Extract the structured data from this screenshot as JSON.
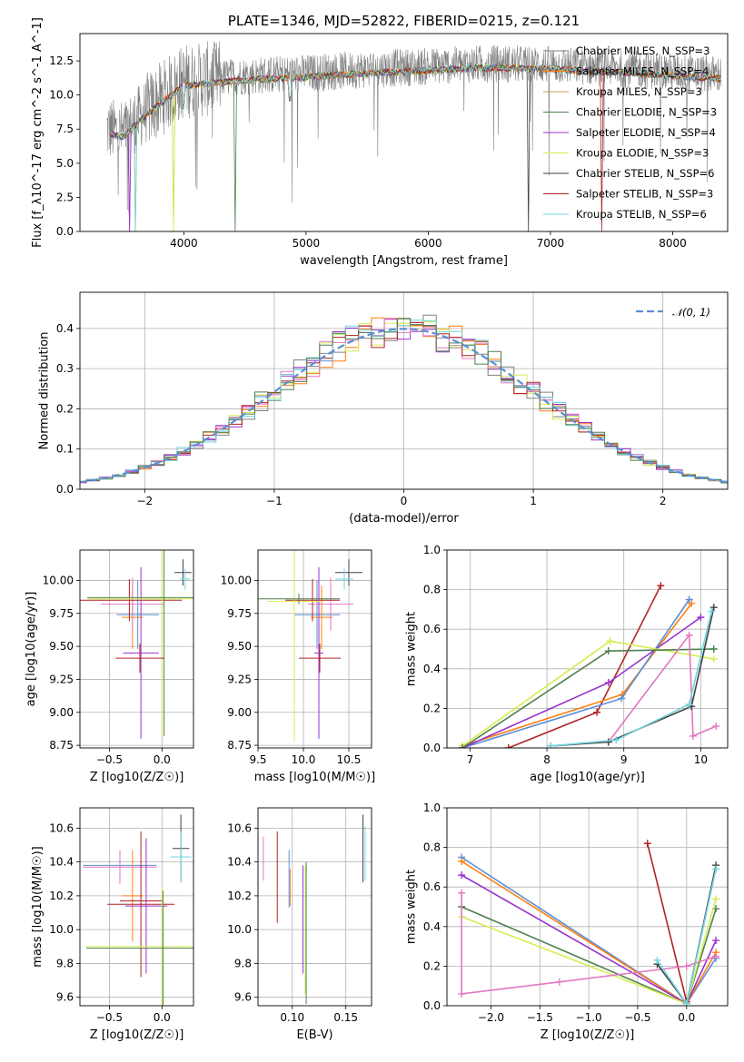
{
  "chart_data": [
    {
      "id": "spectrum",
      "type": "line",
      "title": "PLATE=1346, MJD=52822, FIBERID=0215, z=0.121",
      "xlabel": "wavelength [Angstrom, rest frame]",
      "ylabel": "Flux [f_λ10^-17 erg cm^-2 s^-1 A^-1]",
      "xlim": [
        3150,
        8450
      ],
      "ylim": [
        0,
        14.5
      ],
      "xticks": [
        4000,
        5000,
        6000,
        7000,
        8000
      ],
      "yticks": [
        0.0,
        2.5,
        5.0,
        7.5,
        10.0,
        12.5
      ],
      "grid": false,
      "legend_position": "top-right",
      "observed": {
        "color": "#808080",
        "x": [
          3370,
          3500,
          3650,
          3800,
          4000,
          4500,
          5000,
          5500,
          6000,
          6500,
          7000,
          7500,
          8000,
          8400
        ],
        "y": [
          7.5,
          7.2,
          8.5,
          9.6,
          11.0,
          11.4,
          11.6,
          11.9,
          12.1,
          12.3,
          12.2,
          12.0,
          11.7,
          11.5
        ]
      },
      "series": [
        {
          "name": "Chabrier MILES, N_SSP=3",
          "color": "#808080"
        },
        {
          "name": "Salpeter MILES, N_SSP=4",
          "color": "#ff7f0e"
        },
        {
          "name": "Kroupa MILES, N_SSP=3",
          "color": "#c8a050"
        },
        {
          "name": "Chabrier ELODIE, N_SSP=3",
          "color": "#4f7f4f"
        },
        {
          "name": "Salpeter ELODIE, N_SSP=4",
          "color": "#9932cc"
        },
        {
          "name": "Kroupa ELODIE, N_SSP=3",
          "color": "#d4ee50"
        },
        {
          "name": "Chabrier STELIB, N_SSP=6",
          "color": "#404040"
        },
        {
          "name": "Salpeter STELIB, N_SSP=3",
          "color": "#b22222"
        },
        {
          "name": "Kroupa STELIB, N_SSP=6",
          "color": "#6fd6e0"
        }
      ]
    },
    {
      "id": "residuals",
      "type": "histogram",
      "xlabel": "(data-model)/error",
      "ylabel": "Normed distribution",
      "xlim": [
        -2.5,
        2.5
      ],
      "ylim": [
        0,
        0.49
      ],
      "xticks": [
        -2,
        -1,
        0,
        1,
        2
      ],
      "yticks": [
        0.0,
        0.1,
        0.2,
        0.3,
        0.4
      ],
      "grid": true,
      "legend": [
        {
          "name": "𝒩(0, 1)",
          "color": "#5b8fd6",
          "style": "dashed"
        }
      ],
      "legend_position": "top-right",
      "bin_width": 0.1,
      "colors": [
        "#808080",
        "#ff7f0e",
        "#9932cc",
        "#d4ee50",
        "#e377c2",
        "#b22222",
        "#6fd6e0",
        "#4f7f4f"
      ]
    },
    {
      "id": "age-vs-z",
      "type": "errorbar",
      "xlabel": "Z [log10(Z/Z☉)]",
      "ylabel": "age  [log10(age/yr)]",
      "xlim": [
        -0.78,
        0.3
      ],
      "ylim": [
        8.73,
        10.23
      ],
      "xticks": [
        -0.5,
        0.0
      ],
      "yticks": [
        8.75,
        9.0,
        9.25,
        9.5,
        9.75,
        10.0
      ],
      "grid": true,
      "points": [
        {
          "x": 0.2,
          "y": 10.06,
          "xerr": 0.08,
          "yerr": 0.1,
          "color": "#404040"
        },
        {
          "x": 0.22,
          "y": 10.01,
          "xerr": 0.05,
          "yerr": 0.08,
          "color": "#6fd6e0"
        },
        {
          "x": -0.23,
          "y": 9.74,
          "xerr": 0.2,
          "yerr": 0.26,
          "color": "#5b8fd6"
        },
        {
          "x": -0.28,
          "y": 9.72,
          "xerr": 0.1,
          "yerr": 0.24,
          "color": "#ff7f0e"
        },
        {
          "x": -0.28,
          "y": 9.82,
          "xerr": 0.3,
          "yerr": 0.2,
          "color": "#e377c2"
        },
        {
          "x": -0.31,
          "y": 9.85,
          "xerr": 0.5,
          "yerr": 0.16,
          "color": "#b22222"
        },
        {
          "x": -0.2,
          "y": 9.45,
          "xerr": 0.17,
          "yerr": 0.65,
          "color": "#9932cc"
        },
        {
          "x": 0.0,
          "y": 9.86,
          "xerr": 0.7,
          "yerr": 1.05,
          "color": "#d4ee50"
        },
        {
          "x": 0.02,
          "y": 9.87,
          "xerr": 0.73,
          "yerr": 1.05,
          "color": "#4f7f4f"
        },
        {
          "x": -0.21,
          "y": 9.41,
          "xerr": 0.23,
          "yerr": 0.11,
          "color": "#b22222"
        }
      ]
    },
    {
      "id": "age-vs-mass",
      "type": "errorbar",
      "xlabel": "mass [log10(M/M☉)]",
      "ylabel": "",
      "xlim": [
        9.5,
        10.75
      ],
      "ylim": [
        8.73,
        10.23
      ],
      "xticks": [
        9.5,
        10.0,
        10.5
      ],
      "yticks": [
        8.75,
        9.0,
        9.25,
        9.5,
        9.75,
        10.0
      ],
      "grid": true,
      "points": [
        {
          "x": 10.5,
          "y": 10.06,
          "xerr": 0.15,
          "yerr": 0.1,
          "color": "#404040"
        },
        {
          "x": 10.45,
          "y": 10.01,
          "xerr": 0.1,
          "yerr": 0.08,
          "color": "#6fd6e0"
        },
        {
          "x": 10.15,
          "y": 9.74,
          "xerr": 0.25,
          "yerr": 0.26,
          "color": "#5b8fd6"
        },
        {
          "x": 10.2,
          "y": 9.72,
          "xerr": 0.12,
          "yerr": 0.24,
          "color": "#ff7f0e"
        },
        {
          "x": 10.3,
          "y": 9.82,
          "xerr": 0.25,
          "yerr": 0.2,
          "color": "#e377c2"
        },
        {
          "x": 10.1,
          "y": 9.85,
          "xerr": 0.3,
          "yerr": 0.16,
          "color": "#b22222"
        },
        {
          "x": 10.17,
          "y": 9.45,
          "xerr": 0.05,
          "yerr": 0.65,
          "color": "#9932cc"
        },
        {
          "x": 9.9,
          "y": 9.84,
          "xerr": 0.3,
          "yerr": 1.06,
          "color": "#d4ee50"
        },
        {
          "x": 9.95,
          "y": 9.86,
          "xerr": 0.45,
          "yerr": 0.04,
          "color": "#4f7f4f"
        },
        {
          "x": 10.18,
          "y": 9.41,
          "xerr": 0.23,
          "yerr": 0.11,
          "color": "#b22222"
        }
      ]
    },
    {
      "id": "weight-vs-age",
      "type": "line",
      "xlabel": "age  [log10(age/yr)]",
      "ylabel": "mass weight",
      "xlim": [
        6.7,
        10.35
      ],
      "ylim": [
        0,
        1.0
      ],
      "xticks": [
        7,
        8,
        9,
        10
      ],
      "yticks": [
        0.0,
        0.2,
        0.4,
        0.6,
        0.8,
        1.0
      ],
      "grid": true,
      "series": [
        {
          "color": "#b22222",
          "x": [
            7.5,
            8.65,
            9.48
          ],
          "y": [
            0.0,
            0.18,
            0.82
          ]
        },
        {
          "color": "#ff7f0e",
          "x": [
            6.9,
            8.98,
            9.88
          ],
          "y": [
            0.01,
            0.27,
            0.73
          ]
        },
        {
          "color": "#5b8fd6",
          "x": [
            6.9,
            8.97,
            9.85
          ],
          "y": [
            0.0,
            0.25,
            0.75
          ]
        },
        {
          "color": "#9932cc",
          "x": [
            6.9,
            8.8,
            10.0
          ],
          "y": [
            0.0,
            0.33,
            0.66
          ]
        },
        {
          "color": "#d4ee50",
          "x": [
            6.9,
            8.82,
            10.17
          ],
          "y": [
            0.01,
            0.54,
            0.45
          ]
        },
        {
          "color": "#4f7f4f",
          "x": [
            6.9,
            8.8,
            10.17
          ],
          "y": [
            0.0,
            0.49,
            0.5
          ]
        },
        {
          "color": "#e377c2",
          "x": [
            8.8,
            9.85,
            9.9,
            10.2
          ],
          "y": [
            0.03,
            0.57,
            0.06,
            0.11
          ]
        },
        {
          "color": "#404040",
          "x": [
            8.05,
            8.8,
            9.88,
            10.17
          ],
          "y": [
            0.01,
            0.03,
            0.21,
            0.71
          ]
        },
        {
          "color": "#6fd6e0",
          "x": [
            8.05,
            8.9,
            9.85,
            10.14
          ],
          "y": [
            0.01,
            0.04,
            0.22,
            0.69
          ]
        }
      ]
    },
    {
      "id": "mass-vs-z",
      "type": "errorbar",
      "xlabel": "Z [log10(Z/Z☉)]",
      "ylabel": "mass [log10(M/M☉)]",
      "xlim": [
        -0.78,
        0.3
      ],
      "ylim": [
        9.55,
        10.72
      ],
      "xticks": [
        -0.5,
        0.0
      ],
      "yticks": [
        9.6,
        9.8,
        10.0,
        10.2,
        10.4,
        10.6
      ],
      "grid": true,
      "points": [
        {
          "x": 0.18,
          "y": 10.48,
          "xerr": 0.08,
          "yerr": 0.2,
          "color": "#404040"
        },
        {
          "x": 0.18,
          "y": 10.43,
          "xerr": 0.1,
          "yerr": 0.15,
          "color": "#6fd6e0"
        },
        {
          "x": -0.4,
          "y": 10.38,
          "xerr": 0.35,
          "yerr": 0.08,
          "color": "#5b8fd6"
        },
        {
          "x": -0.28,
          "y": 10.2,
          "xerr": 0.1,
          "yerr": 0.27,
          "color": "#ff7f0e"
        },
        {
          "x": -0.4,
          "y": 10.37,
          "xerr": 0.35,
          "yerr": 0.1,
          "color": "#e377c2"
        },
        {
          "x": -0.2,
          "y": 10.15,
          "xerr": 0.32,
          "yerr": 0.43,
          "color": "#b22222"
        },
        {
          "x": -0.15,
          "y": 10.14,
          "xerr": 0.2,
          "yerr": 0.4,
          "color": "#9932cc"
        },
        {
          "x": 0.0,
          "y": 9.9,
          "xerr": 0.73,
          "yerr": 0.35,
          "color": "#d4ee50"
        },
        {
          "x": 0.01,
          "y": 9.89,
          "xerr": 0.73,
          "yerr": 0.34,
          "color": "#4f7f4f"
        },
        {
          "x": -0.2,
          "y": 10.17,
          "xerr": 0.2,
          "yerr": 0.0,
          "color": "#b22222"
        }
      ]
    },
    {
      "id": "mass-vs-ebv",
      "type": "errorbar",
      "xlabel": "E(B-V)",
      "ylabel": "",
      "xlim": [
        0.068,
        0.174
      ],
      "ylim": [
        9.55,
        10.72
      ],
      "xticks": [
        0.1,
        0.15
      ],
      "yticks": [
        9.6,
        9.8,
        10.0,
        10.2,
        10.4,
        10.6
      ],
      "grid": true,
      "points": [
        {
          "x": 0.073,
          "y": 10.42,
          "xerr": 0,
          "yerr": 0.13,
          "color": "#e377c2"
        },
        {
          "x": 0.086,
          "y": 10.31,
          "xerr": 0,
          "yerr": 0.27,
          "color": "#b22222"
        },
        {
          "x": 0.097,
          "y": 10.3,
          "xerr": 0,
          "yerr": 0.17,
          "color": "#5b8fd6"
        },
        {
          "x": 0.098,
          "y": 10.25,
          "xerr": 0,
          "yerr": 0.11,
          "color": "#ff7f0e"
        },
        {
          "x": 0.11,
          "y": 10.06,
          "xerr": 0,
          "yerr": 0.32,
          "color": "#9932cc"
        },
        {
          "x": 0.112,
          "y": 10.0,
          "xerr": 0,
          "yerr": 0.38,
          "color": "#d4ee50"
        },
        {
          "x": 0.113,
          "y": 9.98,
          "xerr": 0,
          "yerr": 0.42,
          "color": "#4f7f4f"
        },
        {
          "x": 0.166,
          "y": 10.48,
          "xerr": 0,
          "yerr": 0.2,
          "color": "#404040"
        },
        {
          "x": 0.168,
          "y": 10.45,
          "xerr": 0,
          "yerr": 0.16,
          "color": "#6fd6e0"
        }
      ]
    },
    {
      "id": "weight-vs-z",
      "type": "line",
      "xlabel": "Z [log10(Z/Z☉)]",
      "ylabel": "mass weight",
      "xlim": [
        -2.45,
        0.42
      ],
      "ylim": [
        0,
        1.0
      ],
      "xticks": [
        -2.0,
        -1.5,
        -1.0,
        -0.5,
        0.0
      ],
      "yticks": [
        0.0,
        0.2,
        0.4,
        0.6,
        0.8,
        1.0
      ],
      "grid": true,
      "series": [
        {
          "color": "#b22222",
          "x": [
            -0.4,
            0.0
          ],
          "y": [
            0.82,
            0.02
          ]
        },
        {
          "color": "#5b8fd6",
          "x": [
            -2.3,
            0.0,
            0.3
          ],
          "y": [
            0.75,
            0.01,
            0.24
          ]
        },
        {
          "color": "#ff7f0e",
          "x": [
            -2.3,
            0.0,
            0.3
          ],
          "y": [
            0.73,
            0.01,
            0.27
          ]
        },
        {
          "color": "#9932cc",
          "x": [
            -2.3,
            0.0,
            0.3
          ],
          "y": [
            0.66,
            0.01,
            0.33
          ]
        },
        {
          "color": "#4f7f4f",
          "x": [
            -2.3,
            0.0,
            0.3
          ],
          "y": [
            0.5,
            0.01,
            0.49
          ]
        },
        {
          "color": "#d4ee50",
          "x": [
            -2.3,
            0.0,
            0.3
          ],
          "y": [
            0.45,
            0.01,
            0.54
          ]
        },
        {
          "color": "#e377c2",
          "x": [
            -2.3,
            -2.3,
            -1.3,
            0.0,
            0.3
          ],
          "y": [
            0.57,
            0.06,
            0.12,
            0.2,
            0.25
          ]
        },
        {
          "color": "#404040",
          "x": [
            -0.3,
            0.0,
            0.3
          ],
          "y": [
            0.21,
            0.01,
            0.71
          ]
        },
        {
          "color": "#6fd6e0",
          "x": [
            -0.3,
            0.0,
            0.3
          ],
          "y": [
            0.23,
            0.01,
            0.69
          ]
        }
      ]
    }
  ]
}
